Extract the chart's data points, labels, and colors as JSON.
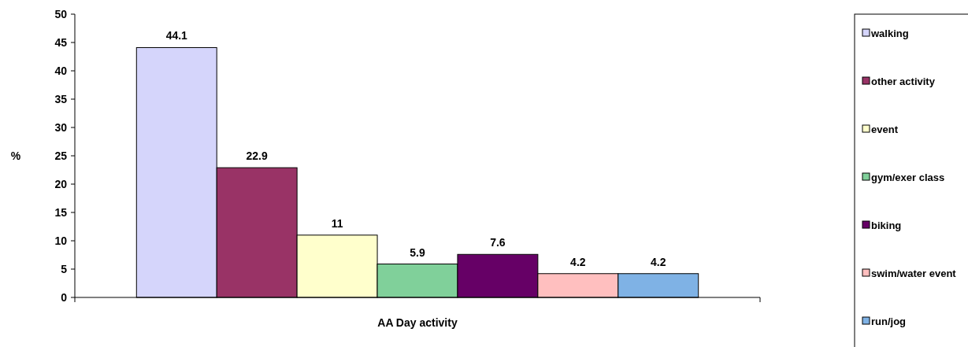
{
  "chart_data": {
    "type": "bar",
    "xlabel": "AA Day activity",
    "ylabel": "%",
    "categories": [
      null
    ],
    "series": [
      {
        "name": "walking",
        "color": "#d5d5fb",
        "values": [
          44.1
        ]
      },
      {
        "name": "other activity",
        "color": "#993366",
        "values": [
          22.9
        ]
      },
      {
        "name": "event",
        "color": "#ffffcc",
        "values": [
          11
        ]
      },
      {
        "name": "gym/exer class",
        "color": "#80d09a",
        "values": [
          5.9
        ]
      },
      {
        "name": "biking",
        "color": "#660066",
        "values": [
          7.6
        ]
      },
      {
        "name": "swim/water event",
        "color": "#ffbfbf",
        "values": [
          4.2
        ]
      },
      {
        "name": "run/jog",
        "color": "#7fb2e5",
        "values": [
          4.2
        ]
      }
    ],
    "ylim": [
      0,
      50
    ],
    "yticks": [
      0,
      5,
      10,
      15,
      20,
      25,
      30,
      35,
      40,
      45,
      50
    ],
    "grid": false,
    "legend": "right",
    "data_labels": true
  }
}
